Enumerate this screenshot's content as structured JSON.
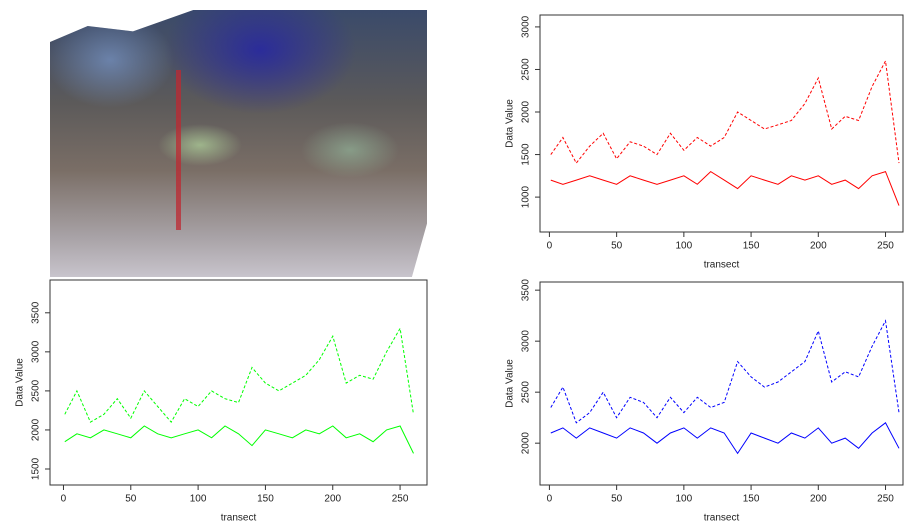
{
  "chart_data": [
    {
      "type": "line",
      "xlabel": "transect",
      "ylabel": "Data Value",
      "x": [
        1,
        10,
        20,
        30,
        40,
        50,
        60,
        70,
        80,
        90,
        100,
        110,
        120,
        130,
        140,
        150,
        160,
        170,
        180,
        190,
        200,
        210,
        220,
        230,
        240,
        250,
        260
      ],
      "xlim": [
        -7,
        263
      ],
      "xticks": [
        0,
        50,
        100,
        150,
        200,
        250
      ],
      "ylim": [
        590,
        3140
      ],
      "yticks": [
        1000,
        1500,
        2000,
        2500,
        3000
      ],
      "series": [
        {
          "color": "#ff0000",
          "style": "dashed",
          "values": [
            1500,
            1700,
            1400,
            1600,
            1750,
            1450,
            1650,
            1600,
            1500,
            1750,
            1550,
            1700,
            1600,
            1700,
            2000,
            1900,
            1800,
            1850,
            1900,
            2100,
            2400,
            1800,
            1950,
            1900,
            2300,
            2600,
            1400
          ]
        },
        {
          "color": "#ff0000",
          "style": "solid",
          "values": [
            1200,
            1150,
            1200,
            1250,
            1200,
            1150,
            1250,
            1200,
            1150,
            1200,
            1250,
            1150,
            1300,
            1200,
            1100,
            1250,
            1200,
            1150,
            1250,
            1200,
            1250,
            1150,
            1200,
            1100,
            1250,
            1300,
            900
          ]
        }
      ]
    },
    {
      "type": "line",
      "xlabel": "transect",
      "ylabel": "Data Value",
      "x": [
        1,
        10,
        20,
        30,
        40,
        50,
        60,
        70,
        80,
        90,
        100,
        110,
        120,
        130,
        140,
        150,
        160,
        170,
        180,
        190,
        200,
        210,
        220,
        230,
        240,
        250,
        260
      ],
      "xlim": [
        -10,
        270
      ],
      "xticks": [
        0,
        50,
        100,
        150,
        200,
        250
      ],
      "ylim": [
        1295,
        3920
      ],
      "yticks": [
        1500,
        2000,
        2500,
        3000,
        3500
      ],
      "series": [
        {
          "color": "#00ff00",
          "style": "dashed",
          "values": [
            2200,
            2500,
            2100,
            2200,
            2400,
            2150,
            2500,
            2300,
            2100,
            2400,
            2300,
            2500,
            2400,
            2350,
            2800,
            2600,
            2500,
            2600,
            2700,
            2900,
            3200,
            2600,
            2700,
            2650,
            3000,
            3300,
            2200
          ]
        },
        {
          "color": "#00ff00",
          "style": "solid",
          "values": [
            1850,
            1950,
            1900,
            2000,
            1950,
            1900,
            2050,
            1950,
            1900,
            1950,
            2000,
            1900,
            2050,
            1950,
            1800,
            2000,
            1950,
            1900,
            2000,
            1950,
            2050,
            1900,
            1950,
            1850,
            2000,
            2050,
            1700
          ]
        }
      ]
    },
    {
      "type": "line",
      "xlabel": "transect",
      "ylabel": "Data Value",
      "x": [
        1,
        10,
        20,
        30,
        40,
        50,
        60,
        70,
        80,
        90,
        100,
        110,
        120,
        130,
        140,
        150,
        160,
        170,
        180,
        190,
        200,
        210,
        220,
        230,
        240,
        250,
        260
      ],
      "xlim": [
        -7,
        263
      ],
      "xticks": [
        0,
        50,
        100,
        150,
        200,
        250
      ],
      "ylim": [
        1590,
        3580
      ],
      "yticks": [
        2000,
        2500,
        3000,
        3500
      ],
      "series": [
        {
          "color": "#0000ff",
          "style": "dashed",
          "values": [
            2350,
            2550,
            2200,
            2300,
            2500,
            2250,
            2450,
            2400,
            2250,
            2450,
            2300,
            2450,
            2350,
            2400,
            2800,
            2650,
            2550,
            2600,
            2700,
            2800,
            3100,
            2600,
            2700,
            2650,
            2950,
            3200,
            2300
          ]
        },
        {
          "color": "#0000ff",
          "style": "solid",
          "values": [
            2100,
            2150,
            2050,
            2150,
            2100,
            2050,
            2150,
            2100,
            2000,
            2100,
            2150,
            2050,
            2150,
            2100,
            1900,
            2100,
            2050,
            2000,
            2100,
            2050,
            2150,
            2000,
            2050,
            1950,
            2100,
            2200,
            1950
          ]
        }
      ]
    }
  ]
}
